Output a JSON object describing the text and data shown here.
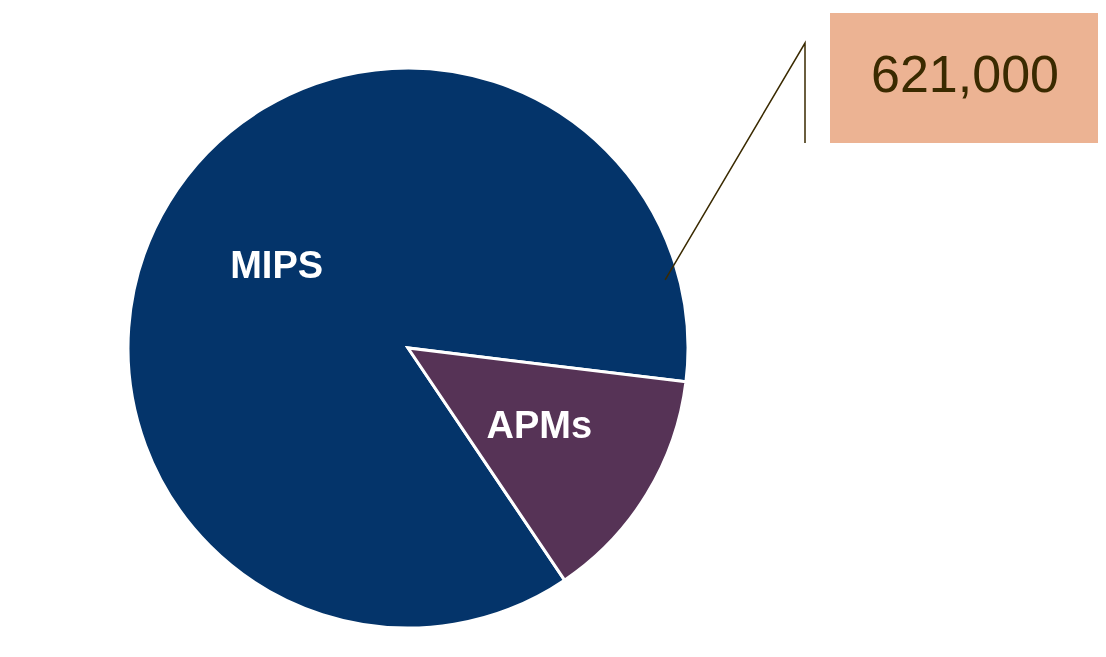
{
  "chart_data": {
    "type": "pie",
    "categories": [
      "MIPS",
      "APMs"
    ],
    "values": [
      621000,
      98000
    ],
    "colors": [
      "#04346a",
      "#563356"
    ],
    "value_labels": [
      "621,000",
      null
    ]
  }
}
